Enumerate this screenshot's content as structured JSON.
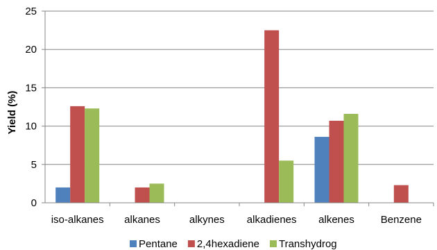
{
  "chart_data": {
    "type": "bar",
    "categories": [
      "iso-alkanes",
      "alkanes",
      "alkynes",
      "alkadienes",
      "alkenes",
      "Benzene"
    ],
    "series": [
      {
        "name": "Pentane",
        "color": "#4f81bd",
        "values": [
          2.0,
          0,
          0,
          0,
          8.6,
          0
        ]
      },
      {
        "name": "2,4hexadiene",
        "color": "#c0504d",
        "values": [
          12.6,
          2.0,
          0,
          22.5,
          10.7,
          2.3
        ]
      },
      {
        "name": "Transhydrog",
        "color": "#9bbb59",
        "values": [
          12.3,
          2.5,
          0,
          5.5,
          11.6,
          0
        ]
      }
    ],
    "ylabel": "Yield (%)",
    "xlabel": "",
    "ylim": [
      0,
      25
    ],
    "yticks": [
      0,
      5,
      10,
      15,
      20,
      25
    ],
    "grid": true,
    "legend": "bottom"
  }
}
